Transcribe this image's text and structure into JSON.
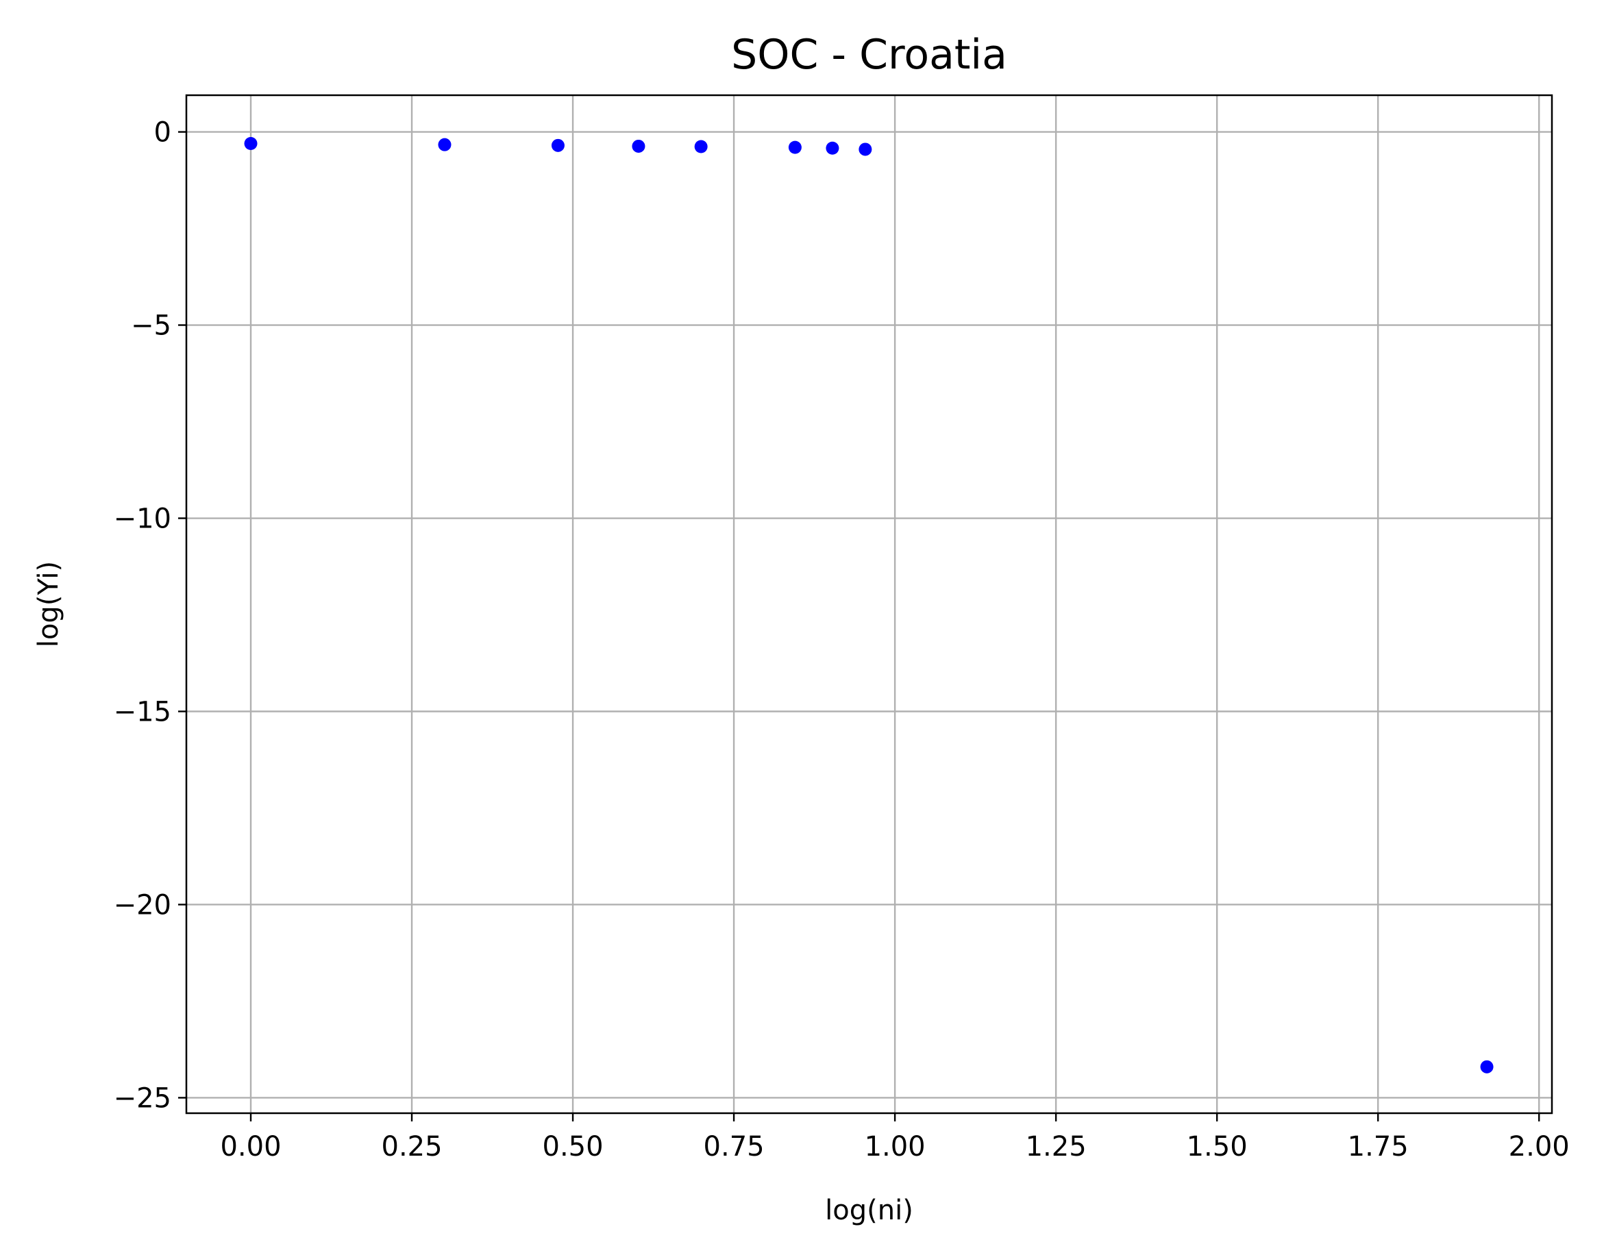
{
  "chart_data": {
    "type": "scatter",
    "title": "SOC - Croatia",
    "xlabel": "log(ni)",
    "ylabel": "log(Yi)",
    "xlim": [
      -0.1,
      2.02
    ],
    "ylim": [
      -25.4,
      0.95
    ],
    "xticks": [
      0.0,
      0.25,
      0.5,
      0.75,
      1.0,
      1.25,
      1.5,
      1.75,
      2.0
    ],
    "xtick_labels": [
      "0.00",
      "0.25",
      "0.50",
      "0.75",
      "1.00",
      "1.25",
      "1.50",
      "1.75",
      "2.00"
    ],
    "yticks": [
      0,
      -5,
      -10,
      -15,
      -20,
      -25
    ],
    "ytick_labels": [
      "0",
      "−5",
      "−10",
      "−15",
      "−20",
      "−25"
    ],
    "grid": true,
    "legend": "none",
    "series": [
      {
        "color": "#0000ff",
        "x": [
          0.0,
          0.301,
          0.477,
          0.602,
          0.699,
          0.845,
          0.903,
          0.954,
          1.919
        ],
        "y": [
          -0.3,
          -0.33,
          -0.35,
          -0.37,
          -0.38,
          -0.4,
          -0.42,
          -0.45,
          -24.2
        ]
      }
    ]
  }
}
